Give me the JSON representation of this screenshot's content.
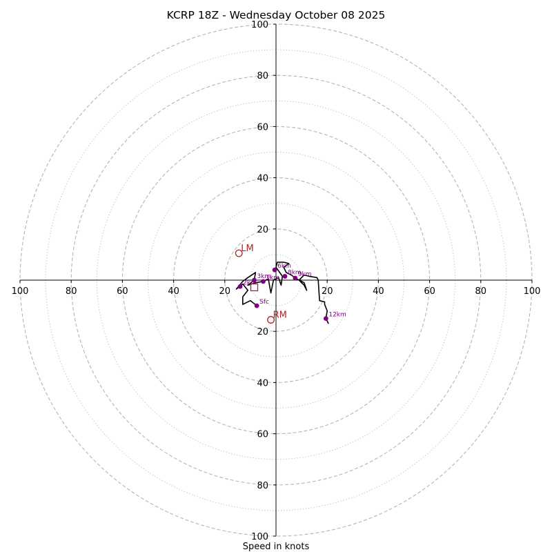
{
  "chart_data": {
    "type": "hodograph",
    "title": "KCRP 18Z - Wednesday October 08 2025",
    "xlabel": "Speed in knots",
    "units": "knots",
    "max_speed": 100,
    "ring_major": [
      20,
      40,
      60,
      80,
      100
    ],
    "ring_minor": [
      10,
      30,
      50,
      70,
      90
    ],
    "x_ticks": [
      {
        "value": -100,
        "label": "100"
      },
      {
        "value": -80,
        "label": "80"
      },
      {
        "value": -60,
        "label": "60"
      },
      {
        "value": -40,
        "label": "40"
      },
      {
        "value": -20,
        "label": "20"
      },
      {
        "value": 20,
        "label": "20"
      },
      {
        "value": 40,
        "label": "40"
      },
      {
        "value": 60,
        "label": "60"
      },
      {
        "value": 80,
        "label": "80"
      },
      {
        "value": 100,
        "label": "100"
      }
    ],
    "y_ticks": [
      {
        "value": 100,
        "label": "100"
      },
      {
        "value": 80,
        "label": "80"
      },
      {
        "value": 60,
        "label": "60"
      },
      {
        "value": 40,
        "label": "40"
      },
      {
        "value": 20,
        "label": "20"
      },
      {
        "value": -20,
        "label": "20"
      },
      {
        "value": -40,
        "label": "40"
      },
      {
        "value": -60,
        "label": "60"
      },
      {
        "value": -80,
        "label": "80"
      },
      {
        "value": -100,
        "label": "100"
      }
    ],
    "wind_trace": [
      [
        -7.5,
        -10
      ],
      [
        -10,
        -8
      ],
      [
        -13,
        -9.5
      ],
      [
        -13,
        -6.5
      ],
      [
        -11,
        -4
      ],
      [
        -13,
        -1.5
      ],
      [
        -15.5,
        -3.5
      ],
      [
        -13,
        -0.5
      ],
      [
        -11,
        1
      ],
      [
        -8,
        3
      ],
      [
        -8.5,
        0
      ],
      [
        -11,
        -2
      ],
      [
        -8,
        -1
      ],
      [
        -5,
        -0.5
      ],
      [
        -3,
        0.5
      ],
      [
        -2,
        -5
      ],
      [
        -1,
        0
      ],
      [
        1,
        1
      ],
      [
        2,
        -2
      ],
      [
        2.5,
        1.5
      ],
      [
        0,
        5
      ],
      [
        0.5,
        7
      ],
      [
        3,
        7
      ],
      [
        5,
        6.5
      ],
      [
        3,
        5
      ],
      [
        4,
        3
      ],
      [
        6,
        2
      ],
      [
        8,
        0.5
      ],
      [
        11,
        -1
      ],
      [
        12,
        -4
      ],
      [
        11,
        -2
      ],
      [
        9,
        0
      ],
      [
        11,
        2
      ],
      [
        13,
        1.5
      ],
      [
        16,
        1
      ],
      [
        16.5,
        0
      ],
      [
        17,
        -8
      ],
      [
        19,
        -8.5
      ],
      [
        19,
        -9.5
      ],
      [
        20,
        -12
      ],
      [
        19.5,
        -15
      ],
      [
        20.5,
        -17
      ]
    ],
    "height_markers": [
      {
        "label": "Sfc",
        "u": -7.5,
        "v": -10
      },
      {
        "label": "1km",
        "u": -5,
        "v": -0.5
      },
      {
        "label": "2km",
        "u": -14,
        "v": -2.5
      },
      {
        "label": "3km",
        "u": -8.5,
        "v": 0
      },
      {
        "label": "6km",
        "u": -0.5,
        "v": 4
      },
      {
        "label": "8km",
        "u": 3.5,
        "v": 1.5
      },
      {
        "label": "9km",
        "u": 7.5,
        "v": 0.8
      },
      {
        "label": "12km",
        "u": 19.5,
        "v": -15
      }
    ],
    "storm_motion": [
      {
        "label": "LM",
        "u": -14.5,
        "v": 10.5
      },
      {
        "label": "RM",
        "u": -2,
        "v": -15.5
      }
    ],
    "mean_wind": {
      "u": -8.5,
      "v": -2.8
    },
    "small_labels": [
      "2km",
      "3km",
      "1km",
      "6km",
      "8km",
      "9km",
      "12km",
      "Sfc"
    ]
  }
}
